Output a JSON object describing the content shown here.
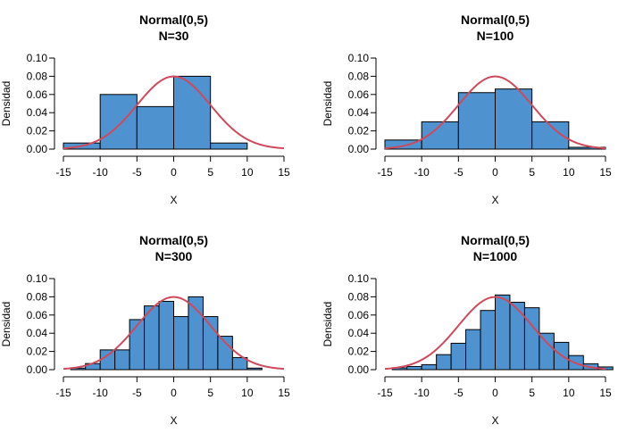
{
  "chart_data": [
    {
      "type": "histogram",
      "title": "Normal(0,5)",
      "subtitle": "N=30",
      "xlabel": "X",
      "ylabel": "Densidad",
      "xlim": [
        -15,
        15
      ],
      "ylim": [
        0,
        0.1
      ],
      "xticks": [
        "-15",
        "-10",
        "-5",
        "0",
        "5",
        "10",
        "15"
      ],
      "yticks": [
        "0.00",
        "0.02",
        "0.04",
        "0.06",
        "0.08",
        "0.10"
      ],
      "bin_edges": [
        -15,
        -10,
        -5,
        0,
        5,
        10
      ],
      "values": [
        0.0067,
        0.06,
        0.0467,
        0.08,
        0.0067
      ],
      "bar_color": "#4e93d0",
      "curve": {
        "type": "normal-density",
        "mean": 0,
        "sd": 5,
        "color": "#d0495b"
      }
    },
    {
      "type": "histogram",
      "title": "Normal(0,5)",
      "subtitle": "N=100",
      "xlabel": "X",
      "ylabel": "Densidad",
      "xlim": [
        -15,
        15
      ],
      "ylim": [
        0,
        0.1
      ],
      "xticks": [
        "-15",
        "-10",
        "-5",
        "0",
        "5",
        "10",
        "15"
      ],
      "yticks": [
        "0.00",
        "0.02",
        "0.04",
        "0.06",
        "0.08",
        "0.10"
      ],
      "bin_edges": [
        -15,
        -10,
        -5,
        0,
        5,
        10,
        15
      ],
      "values": [
        0.01,
        0.03,
        0.062,
        0.066,
        0.03,
        0.002
      ],
      "bar_color": "#4e93d0",
      "curve": {
        "type": "normal-density",
        "mean": 0,
        "sd": 5,
        "color": "#d0495b"
      }
    },
    {
      "type": "histogram",
      "title": "Normal(0,5)",
      "subtitle": "N=300",
      "xlabel": "X",
      "ylabel": "Densidad",
      "xlim": [
        -15,
        15
      ],
      "ylim": [
        0,
        0.1
      ],
      "xticks": [
        "-15",
        "-10",
        "-5",
        "0",
        "5",
        "10",
        "15"
      ],
      "yticks": [
        "0.00",
        "0.02",
        "0.04",
        "0.06",
        "0.08",
        "0.10"
      ],
      "bin_edges": [
        -14,
        -12,
        -10,
        -8,
        -6,
        -4,
        -2,
        0,
        2,
        4,
        6,
        8,
        10,
        12
      ],
      "values": [
        0.0017,
        0.0067,
        0.0217,
        0.0217,
        0.055,
        0.07,
        0.075,
        0.0583,
        0.08,
        0.0583,
        0.0367,
        0.0133,
        0.0017
      ],
      "bar_color": "#4e93d0",
      "curve": {
        "type": "normal-density",
        "mean": 0,
        "sd": 5,
        "color": "#d0495b"
      }
    },
    {
      "type": "histogram",
      "title": "Normal(0,5)",
      "subtitle": "N=1000",
      "xlabel": "X",
      "ylabel": "Densidad",
      "xlim": [
        -15,
        15
      ],
      "ylim": [
        0,
        0.1
      ],
      "xticks": [
        "-15",
        "-10",
        "-5",
        "0",
        "5",
        "10",
        "15"
      ],
      "yticks": [
        "0.00",
        "0.02",
        "0.04",
        "0.06",
        "0.08",
        "0.10"
      ],
      "bin_edges": [
        -14,
        -12,
        -10,
        -8,
        -6,
        -4,
        -2,
        0,
        2,
        4,
        6,
        8,
        10,
        12,
        14,
        16
      ],
      "values": [
        0.002,
        0.0035,
        0.0055,
        0.0165,
        0.029,
        0.044,
        0.065,
        0.082,
        0.074,
        0.068,
        0.04,
        0.03,
        0.0155,
        0.0065,
        0.003
      ],
      "bar_color": "#4e93d0",
      "curve": {
        "type": "normal-density",
        "mean": 0,
        "sd": 5,
        "color": "#d0495b"
      }
    }
  ]
}
